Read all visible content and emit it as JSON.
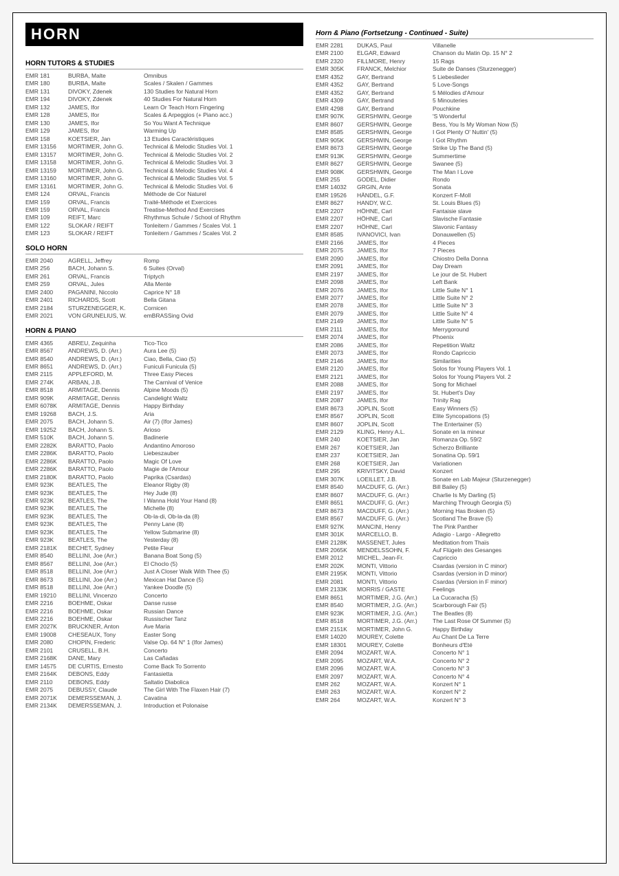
{
  "title": "HORN",
  "leftSections": [
    {
      "heading": "HORN TUTORS & STUDIES",
      "rows": [
        [
          "EMR 181",
          "BURBA, Malte",
          "Omnibus"
        ],
        [
          "EMR 180",
          "BURBA, Malte",
          "Scales / Skalen / Gammes"
        ],
        [
          "EMR 131",
          "DIVOKY, Zdenek",
          "130 Studies for Natural Horn"
        ],
        [
          "EMR 194",
          "DIVOKY, Zdenek",
          "40 Studies For Natural Horn"
        ],
        [
          "EMR 132",
          "JAMES, Ifor",
          "Learn Or Teach Horn Fingering"
        ],
        [
          "EMR 128",
          "JAMES, Ifor",
          "Scales & Arpeggios (+ Piano acc.)"
        ],
        [
          "EMR 130",
          "JAMES, Ifor",
          "So You Want A Technique"
        ],
        [
          "EMR 129",
          "JAMES, Ifor",
          "Warming Up"
        ],
        [
          "EMR 158",
          "KOETSIER, Jan",
          "13 Etudes Caractéristiques"
        ],
        [
          "EMR 13156",
          "MORTIMER, John G.",
          "Technical & Melodic Studies Vol. 1"
        ],
        [
          "EMR 13157",
          "MORTIMER, John G.",
          "Technical & Melodic Studies Vol. 2"
        ],
        [
          "EMR 13158",
          "MORTIMER, John G.",
          "Technical & Melodic Studies Vol. 3"
        ],
        [
          "EMR 13159",
          "MORTIMER, John G.",
          "Technical & Melodic Studies Vol. 4"
        ],
        [
          "EMR 13160",
          "MORTIMER, John G.",
          "Technical & Melodic Studies Vol. 5"
        ],
        [
          "EMR 13161",
          "MORTIMER, John G.",
          "Technical & Melodic Studies Vol. 6"
        ],
        [
          "EMR 124",
          "ORVAL, Francis",
          "Méthode de Cor Naturel"
        ],
        [
          "EMR 159",
          "ORVAL, Francis",
          "Traité-Méthode et Exercices"
        ],
        [
          "EMR 159",
          "ORVAL, Francis",
          "Treatise-Method And Exercises"
        ],
        [
          "EMR 109",
          "REIFT, Marc",
          "Rhythmus Schule / School of Rhythm"
        ],
        [
          "EMR 122",
          "SLOKAR / REIFT",
          "Tonleitern / Gammes / Scales Vol. 1"
        ],
        [
          "EMR 123",
          "SLOKAR / REIFT",
          "Tonleitern / Gammes / Scales Vol. 2"
        ]
      ]
    },
    {
      "heading": "SOLO HORN",
      "rows": [
        [
          "EMR 2040",
          "AGRELL, Jeffrey",
          "Romp"
        ],
        [
          "EMR 256",
          "BACH, Johann S.",
          "6 Suites (Orval)"
        ],
        [
          "EMR 261",
          "ORVAL, Francis",
          "Triptych"
        ],
        [
          "EMR 259",
          "ORVAL, Jules",
          "Alla Mente"
        ],
        [
          "EMR 2400",
          "PAGANINI, Niccolo",
          "Caprice N° 18"
        ],
        [
          "EMR 2401",
          "RICHARDS, Scott",
          "Bella Gitana"
        ],
        [
          "EMR 2184",
          "STURZENEGGER, K.",
          "Cornicen"
        ],
        [
          "EMR 2021",
          "VON GRUNELIUS, W.",
          "emBRASSing Ovid"
        ]
      ]
    },
    {
      "heading": "HORN & PIANO",
      "rows": [
        [
          "EMR 4365",
          "ABREU, Zequinha",
          "Tico-Tico"
        ],
        [
          "EMR 8567",
          "ANDREWS, D. (Arr.)",
          "Aura Lee (5)"
        ],
        [
          "EMR 8540",
          "ANDREWS, D. (Arr.)",
          "Ciao, Bella, Ciao (5)"
        ],
        [
          "EMR 8651",
          "ANDREWS, D. (Arr.)",
          "Funiculi Funicula (5)"
        ],
        [
          "EMR 2115",
          "APPLEFORD, M.",
          "Three Easy Pieces"
        ],
        [
          "EMR 274K",
          "ARBAN, J.B.",
          "The Carnival of Venice"
        ],
        [
          "EMR 8518",
          "ARMITAGE, Dennis",
          "Alpine Moods (5)"
        ],
        [
          "EMR 909K",
          "ARMITAGE, Dennis",
          "Candelight Waltz"
        ],
        [
          "EMR 6078K",
          "ARMITAGE, Dennis",
          "Happy Birthday"
        ],
        [
          "EMR 19268",
          "BACH, J.S.",
          "Aria"
        ],
        [
          "EMR 2075",
          "BACH, Johann S.",
          "Air (7) (Ifor James)"
        ],
        [
          "EMR 19252",
          "BACH, Johann S.",
          "Arioso"
        ],
        [
          "EMR 510K",
          "BACH, Johann S.",
          "Badinerie"
        ],
        [
          "EMR 2282K",
          "BARATTO, Paolo",
          "Andantino Amoroso"
        ],
        [
          "EMR 2286K",
          "BARATTO, Paolo",
          "Liebeszauber"
        ],
        [
          "EMR 2286K",
          "BARATTO, Paolo",
          "Magic Of Love"
        ],
        [
          "EMR 2286K",
          "BARATTO, Paolo",
          "Magie de l'Amour"
        ],
        [
          "EMR 2180K",
          "BARATTO, Paolo",
          "Paprika (Csardas)"
        ],
        [
          "EMR 923K",
          "BEATLES, The",
          "Eleanor Rigby (8)"
        ],
        [
          "EMR 923K",
          "BEATLES, The",
          "Hey Jude (8)"
        ],
        [
          "EMR 923K",
          "BEATLES, The",
          "I Wanna Hold Your Hand (8)"
        ],
        [
          "EMR 923K",
          "BEATLES, The",
          "Michelle (8)"
        ],
        [
          "EMR 923K",
          "BEATLES, The",
          "Ob-la-di, Ob-la-da (8)"
        ],
        [
          "EMR 923K",
          "BEATLES, The",
          "Penny Lane (8)"
        ],
        [
          "EMR 923K",
          "BEATLES, The",
          "Yellow Submarine (8)"
        ],
        [
          "EMR 923K",
          "BEATLES, The",
          "Yesterday (8)"
        ],
        [
          "EMR 2181K",
          "BECHET, Sydney",
          "Petite Fleur"
        ],
        [
          "EMR 8540",
          "BELLINI, Joe (Arr.)",
          "Banana Boat Song (5)"
        ],
        [
          "EMR 8567",
          "BELLINI, Joe (Arr.)",
          "El Choclo (5)"
        ],
        [
          "EMR 8518",
          "BELLINI, Joe (Arr.)",
          "Just A Closer Walk With Thee (5)"
        ],
        [
          "EMR 8673",
          "BELLINI, Joe (Arr.)",
          "Mexican Hat Dance (5)"
        ],
        [
          "EMR 8518",
          "BELLINI, Joe (Arr.)",
          "Yankee Doodle (5)"
        ],
        [
          "EMR 19210",
          "BELLINI, Vincenzo",
          "Concerto"
        ],
        [
          "EMR 2216",
          "BOEHME, Oskar",
          "Danse russe"
        ],
        [
          "EMR 2216",
          "BOEHME, Oskar",
          "Russian Dance"
        ],
        [
          "EMR 2216",
          "BOEHME, Oskar",
          "Russischer Tanz"
        ],
        [
          "EMR 2027K",
          "BRUCKNER, Anton",
          "Ave Maria"
        ],
        [
          "EMR 19008",
          "CHESEAUX, Tony",
          "Easter Song"
        ],
        [
          "EMR 2080",
          "CHOPIN, Frederic",
          "Valse Op. 64 N° 1 (Ifor James)"
        ],
        [
          "EMR 2101",
          "CRUSELL, B.H.",
          "Concerto"
        ],
        [
          "EMR 2168K",
          "DANE, Mary",
          "Las Cañadas"
        ],
        [
          "EMR 14575",
          "DE CURTIS, Ernesto",
          "Come Back To Sorrento"
        ],
        [
          "EMR 2164K",
          "DEBONS, Eddy",
          "Fantasietta"
        ],
        [
          "EMR 2110",
          "DEBONS, Eddy",
          "Saltatio Diabolica"
        ],
        [
          "EMR 2075",
          "DEBUSSY, Claude",
          "The Girl With The Flaxen Hair (7)"
        ],
        [
          "EMR 2071K",
          "DEMERSSEMAN, J.",
          "Cavatina"
        ],
        [
          "EMR 2134K",
          "DEMERSSEMAN, J.",
          "Introduction et Polonaise"
        ]
      ]
    }
  ],
  "rightSections": [
    {
      "heading": "Horn & Piano (Fortsetzung - Continued - Suite)",
      "italic": true,
      "rows": [
        [
          "EMR 2281",
          "DUKAS, Paul",
          "Villanelle"
        ],
        [
          "EMR 2100",
          "ELGAR, Edward",
          "Chanson du Matin Op. 15 N° 2"
        ],
        [
          "EMR 2320",
          "FILLMORE, Henry",
          "15 Rags"
        ],
        [
          "EMR 305K",
          "FRANCK, Melchior",
          "Suite de Danses (Sturzenegger)"
        ],
        [
          "EMR 4352",
          "GAY, Bertrand",
          "5 Liebeslieder"
        ],
        [
          "EMR 4352",
          "GAY, Bertrand",
          "5 Love-Songs"
        ],
        [
          "EMR 4352",
          "GAY, Bertrand",
          "5 Mélodies d'Amour"
        ],
        [
          "EMR 4309",
          "GAY, Bertrand",
          "5 Minouteries"
        ],
        [
          "EMR 4298",
          "GAY, Bertrand",
          "Pouchkine"
        ],
        [
          "EMR 907K",
          "GERSHWIN, George",
          "'S Wonderful"
        ],
        [
          "EMR 8607",
          "GERSHWIN, George",
          "Bess, You Is My Woman Now (5)"
        ],
        [
          "EMR 8585",
          "GERSHWIN, George",
          "I Got Plenty O' Nuttin' (5)"
        ],
        [
          "EMR 905K",
          "GERSHWIN, George",
          "I Got Rhythm"
        ],
        [
          "EMR 8673",
          "GERSHWIN, George",
          "Strike Up The Band (5)"
        ],
        [
          "EMR 913K",
          "GERSHWIN, George",
          "Summertime"
        ],
        [
          "EMR 8627",
          "GERSHWIN, George",
          "Swanee (5)"
        ],
        [
          "EMR 908K",
          "GERSHWIN, George",
          "The Man I Love"
        ],
        [
          "EMR 255",
          "GODEL, Didier",
          "Rondo"
        ],
        [
          "EMR 14032",
          "GRGIN, Ante",
          "Sonata"
        ],
        [
          "EMR 19526",
          "HÄNDEL, G.F.",
          "Konzert F-Moll"
        ],
        [
          "EMR 8627",
          "HANDY, W.C.",
          "St. Louis Blues (5)"
        ],
        [
          "EMR 2207",
          "HÖHNE, Carl",
          "Fantaisie slave"
        ],
        [
          "EMR 2207",
          "HÖHNE, Carl",
          "Slavische Fantasie"
        ],
        [
          "EMR 2207",
          "HÖHNE, Carl",
          "Slavonic Fantasy"
        ],
        [
          "EMR 8585",
          "IVANOVICI, Ivan",
          "Donauwellen (5)"
        ],
        [
          "EMR 2166",
          "JAMES, Ifor",
          "4 Pieces"
        ],
        [
          "EMR 2075",
          "JAMES, Ifor",
          "7 Pieces"
        ],
        [
          "EMR 2090",
          "JAMES, Ifor",
          "Chiostro Della Donna"
        ],
        [
          "EMR 2091",
          "JAMES, Ifor",
          "Day Dream"
        ],
        [
          "EMR 2197",
          "JAMES, Ifor",
          "Le jour de St. Hubert"
        ],
        [
          "EMR 2098",
          "JAMES, Ifor",
          "Left Bank"
        ],
        [
          "EMR 2076",
          "JAMES, Ifor",
          "Little Suite N° 1"
        ],
        [
          "EMR 2077",
          "JAMES, Ifor",
          "Little Suite N° 2"
        ],
        [
          "EMR 2078",
          "JAMES, Ifor",
          "Little Suite N° 3"
        ],
        [
          "EMR 2079",
          "JAMES, Ifor",
          "Little Suite N° 4"
        ],
        [
          "EMR 2149",
          "JAMES, Ifor",
          "Little Suite N° 5"
        ],
        [
          "EMR 2111",
          "JAMES, Ifor",
          "Merrygoround"
        ],
        [
          "EMR 2074",
          "JAMES, Ifor",
          "Phoenix"
        ],
        [
          "EMR 2086",
          "JAMES, Ifor",
          "Repetition Waltz"
        ],
        [
          "EMR 2073",
          "JAMES, Ifor",
          "Rondo Capriccio"
        ],
        [
          "EMR 2146",
          "JAMES, Ifor",
          "Similarities"
        ],
        [
          "EMR 2120",
          "JAMES, Ifor",
          "Solos for Young Players Vol. 1"
        ],
        [
          "EMR 2121",
          "JAMES, Ifor",
          "Solos for Young Players Vol. 2"
        ],
        [
          "EMR 2088",
          "JAMES, Ifor",
          "Song for Michael"
        ],
        [
          "EMR 2197",
          "JAMES, Ifor",
          "St. Hubert's Day"
        ],
        [
          "EMR 2087",
          "JAMES, Ifor",
          "Trinity Rag"
        ],
        [
          "EMR 8673",
          "JOPLIN, Scott",
          "Easy Winners (5)"
        ],
        [
          "EMR 8567",
          "JOPLIN, Scott",
          "Elite Syncopations (5)"
        ],
        [
          "EMR 8607",
          "JOPLIN, Scott",
          "The Entertainer (5)"
        ],
        [
          "EMR 2129",
          "KLING, Henry A.L.",
          "Sonate en la mineur"
        ],
        [
          "EMR 240",
          "KOETSIER, Jan",
          "Romanza Op. 59/2"
        ],
        [
          "EMR 267",
          "KOETSIER, Jan",
          "Scherzo Brilliante"
        ],
        [
          "EMR 237",
          "KOETSIER, Jan",
          "Sonatina Op. 59/1"
        ],
        [
          "EMR 268",
          "KOETSIER, Jan",
          "Variationen"
        ],
        [
          "EMR 295",
          "KRIVITSKY, David",
          "Konzert"
        ],
        [
          "EMR 307K",
          "LOEILLET, J.B.",
          "Sonate en Lab Majeur (Sturzenegger)"
        ],
        [
          "EMR 8540",
          "MACDUFF, G. (Arr.)",
          "Bill Bailey (5)"
        ],
        [
          "EMR 8607",
          "MACDUFF, G. (Arr.)",
          "Charlie Is My Darling (5)"
        ],
        [
          "EMR 8651",
          "MACDUFF, G. (Arr.)",
          "Marching Through Georgia (5)"
        ],
        [
          "EMR 8673",
          "MACDUFF, G. (Arr.)",
          "Morning Has Broken (5)"
        ],
        [
          "EMR 8567",
          "MACDUFF, G. (Arr.)",
          "Scotland The Brave (5)"
        ],
        [
          "EMR 927K",
          "MANCINI, Henry",
          "The Pink Panther"
        ],
        [
          "EMR 301K",
          "MARCELLO, B.",
          "Adagio - Largo - Allegretto"
        ],
        [
          "EMR 2128K",
          "MASSENET, Jules",
          "Meditation from Thaïs"
        ],
        [
          "EMR 2065K",
          "MENDELSSOHN, F.",
          "Auf Flügeln des Gesanges"
        ],
        [
          "EMR 2012",
          "MICHEL, Jean-Fr.",
          "Capriccio"
        ],
        [
          "EMR 202K",
          "MONTI, Vittorio",
          "Csardas (version in C minor)"
        ],
        [
          "EMR 2195K",
          "MONTI, Vittorio",
          "Csardas (version in D minor)"
        ],
        [
          "EMR 2081",
          "MONTI, Vittorio",
          "Csardas (Version in F minor)"
        ],
        [
          "EMR 2133K",
          "MORRIS / GASTE",
          "Feelings"
        ],
        [
          "EMR 8651",
          "MORTIMER, J.G. (Arr.)",
          "La Cucaracha (5)"
        ],
        [
          "EMR 8540",
          "MORTIMER, J.G. (Arr.)",
          "Scarborough Fair (5)"
        ],
        [
          "EMR 923K",
          "MORTIMER, J.G. (Arr.)",
          "The Beatles (8)"
        ],
        [
          "EMR 8518",
          "MORTIMER, J.G. (Arr.)",
          "The Last Rose Of Summer (5)"
        ],
        [
          "EMR 2151K",
          "MORTIMER, John G.",
          "Happy Birthday"
        ],
        [
          "EMR 14020",
          "MOUREY, Colette",
          "Au Chant De La Terre"
        ],
        [
          "EMR 18301",
          "MOUREY, Colette",
          "Bonheurs d'Eté"
        ],
        [
          "EMR 2094",
          "MOZART, W.A.",
          "Concerto N° 1"
        ],
        [
          "EMR 2095",
          "MOZART, W.A.",
          "Concerto N° 2"
        ],
        [
          "EMR 2096",
          "MOZART, W.A.",
          "Concerto N° 3"
        ],
        [
          "EMR 2097",
          "MOZART, W.A.",
          "Concerto N° 4"
        ],
        [
          "EMR 262",
          "MOZART, W.A.",
          "Konzert N° 1"
        ],
        [
          "EMR 263",
          "MOZART, W.A.",
          "Konzert N° 2"
        ],
        [
          "EMR 264",
          "MOZART, W.A.",
          "Konzert N° 3"
        ]
      ]
    }
  ]
}
